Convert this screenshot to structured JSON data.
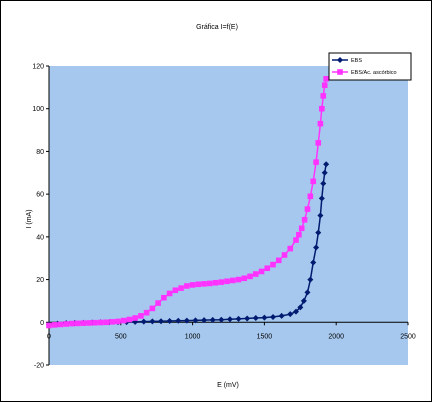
{
  "chart_data": {
    "type": "line",
    "title": "Gráfica I=f(E)",
    "xlabel": "E (mV)",
    "ylabel": "I (mA)",
    "xlim": [
      0,
      2500
    ],
    "ylim": [
      -20,
      120
    ],
    "xticks": [
      0,
      500,
      1000,
      1500,
      2000,
      2500
    ],
    "yticks": [
      -20,
      0,
      20,
      40,
      60,
      80,
      100,
      120
    ],
    "grid": false,
    "legend_position": "top-right",
    "plot_background": "#a6c8ee",
    "series": [
      {
        "name": "EBS",
        "color": "#001b70",
        "marker": "diamond",
        "x": [
          0,
          60,
          120,
          180,
          240,
          300,
          360,
          420,
          480,
          540,
          600,
          660,
          720,
          780,
          840,
          900,
          960,
          1020,
          1080,
          1140,
          1200,
          1260,
          1320,
          1380,
          1440,
          1500,
          1560,
          1620,
          1680,
          1720,
          1750,
          1775,
          1800,
          1820,
          1840,
          1860,
          1875,
          1890,
          1900,
          1910,
          1920,
          1930
        ],
        "y": [
          -1,
          -0.6,
          -0.4,
          -0.3,
          -0.2,
          -0.1,
          0,
          0,
          0.1,
          0.1,
          0.2,
          0.3,
          0.4,
          0.5,
          0.6,
          0.7,
          0.8,
          0.9,
          1,
          1.1,
          1.2,
          1.4,
          1.6,
          1.8,
          2,
          2.2,
          2.5,
          3,
          3.8,
          5,
          7,
          10,
          14,
          20,
          28,
          35,
          42,
          50,
          58,
          65,
          70,
          74
        ]
      },
      {
        "name": "EBS/Ac. ascórbico",
        "color": "#ff33ff",
        "marker": "square",
        "x": [
          0,
          40,
          80,
          120,
          160,
          200,
          240,
          280,
          320,
          360,
          400,
          440,
          480,
          520,
          560,
          600,
          640,
          680,
          720,
          760,
          800,
          840,
          880,
          920,
          960,
          1000,
          1040,
          1080,
          1120,
          1160,
          1200,
          1240,
          1280,
          1320,
          1360,
          1400,
          1440,
          1480,
          1520,
          1560,
          1600,
          1640,
          1680,
          1720,
          1740,
          1760,
          1780,
          1800,
          1820,
          1840,
          1860,
          1875,
          1890,
          1900,
          1910,
          1920,
          1930
        ],
        "y": [
          -1.5,
          -1.2,
          -1,
          -0.8,
          -0.6,
          -0.5,
          -0.4,
          -0.3,
          -0.2,
          -0.1,
          0,
          0.2,
          0.4,
          0.8,
          1.3,
          2,
          3,
          4.5,
          6.5,
          9,
          11.5,
          13.5,
          15,
          16,
          17,
          17.5,
          17.8,
          18,
          18.2,
          18.5,
          18.8,
          19.2,
          19.6,
          20,
          20.6,
          21.5,
          22.6,
          23.8,
          25.3,
          27,
          29,
          31.5,
          34.5,
          38.5,
          41,
          44,
          48,
          53,
          59,
          66,
          75,
          84,
          93,
          100,
          106,
          111,
          114
        ]
      }
    ]
  }
}
